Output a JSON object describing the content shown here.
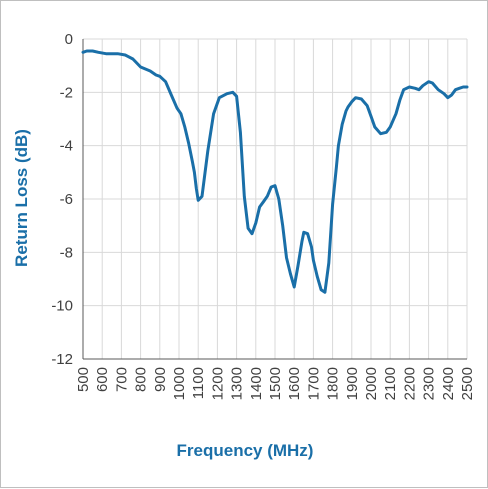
{
  "colors": {
    "series": "#1a6fa8",
    "grid": "#d9d9d9",
    "axis": "#595959",
    "tick_text": "#404040"
  },
  "chart_data": {
    "type": "line",
    "title": "",
    "xlabel": "Frequency (MHz)",
    "ylabel": "Return Loss (dB)",
    "xlim": [
      500,
      2500
    ],
    "ylim": [
      -12,
      0
    ],
    "xticks": [
      500,
      600,
      700,
      800,
      900,
      1000,
      1100,
      1200,
      1300,
      1400,
      1500,
      1600,
      1700,
      1800,
      1900,
      2000,
      2100,
      2200,
      2300,
      2400,
      2500
    ],
    "yticks": [
      0,
      -2,
      -4,
      -6,
      -8,
      -10,
      -12
    ],
    "grid": true,
    "legend": "none",
    "series": [
      {
        "color": "#1a6fa8",
        "x": [
          500,
          520,
          550,
          580,
          620,
          680,
          720,
          760,
          800,
          850,
          880,
          900,
          930,
          960,
          990,
          1010,
          1030,
          1050,
          1070,
          1080,
          1090,
          1100,
          1120,
          1150,
          1180,
          1210,
          1250,
          1280,
          1300,
          1320,
          1340,
          1360,
          1380,
          1400,
          1420,
          1440,
          1460,
          1480,
          1500,
          1520,
          1540,
          1560,
          1580,
          1600,
          1620,
          1640,
          1650,
          1670,
          1690,
          1700,
          1720,
          1740,
          1760,
          1780,
          1800,
          1820,
          1830,
          1850,
          1870,
          1880,
          1900,
          1920,
          1950,
          1980,
          2000,
          2020,
          2050,
          2080,
          2100,
          2130,
          2150,
          2170,
          2200,
          2230,
          2250,
          2270,
          2300,
          2320,
          2350,
          2380,
          2400,
          2420,
          2440,
          2460,
          2480,
          2500
        ],
        "y": [
          -0.5,
          -0.45,
          -0.45,
          -0.5,
          -0.55,
          -0.55,
          -0.6,
          -0.75,
          -1.05,
          -1.2,
          -1.35,
          -1.4,
          -1.6,
          -2.1,
          -2.6,
          -2.8,
          -3.3,
          -3.9,
          -4.6,
          -5.0,
          -5.6,
          -6.05,
          -5.9,
          -4.2,
          -2.8,
          -2.2,
          -2.05,
          -2.0,
          -2.15,
          -3.5,
          -5.9,
          -7.1,
          -7.3,
          -6.9,
          -6.3,
          -6.1,
          -5.9,
          -5.55,
          -5.5,
          -6.0,
          -7.0,
          -8.2,
          -8.8,
          -9.3,
          -8.5,
          -7.6,
          -7.25,
          -7.3,
          -7.8,
          -8.3,
          -8.9,
          -9.4,
          -9.5,
          -8.4,
          -6.2,
          -4.8,
          -4.0,
          -3.2,
          -2.7,
          -2.55,
          -2.35,
          -2.2,
          -2.25,
          -2.5,
          -2.9,
          -3.3,
          -3.55,
          -3.5,
          -3.3,
          -2.8,
          -2.3,
          -1.9,
          -1.8,
          -1.85,
          -1.9,
          -1.75,
          -1.6,
          -1.65,
          -1.9,
          -2.05,
          -2.2,
          -2.1,
          -1.9,
          -1.85,
          -1.8,
          -1.8
        ]
      }
    ]
  }
}
